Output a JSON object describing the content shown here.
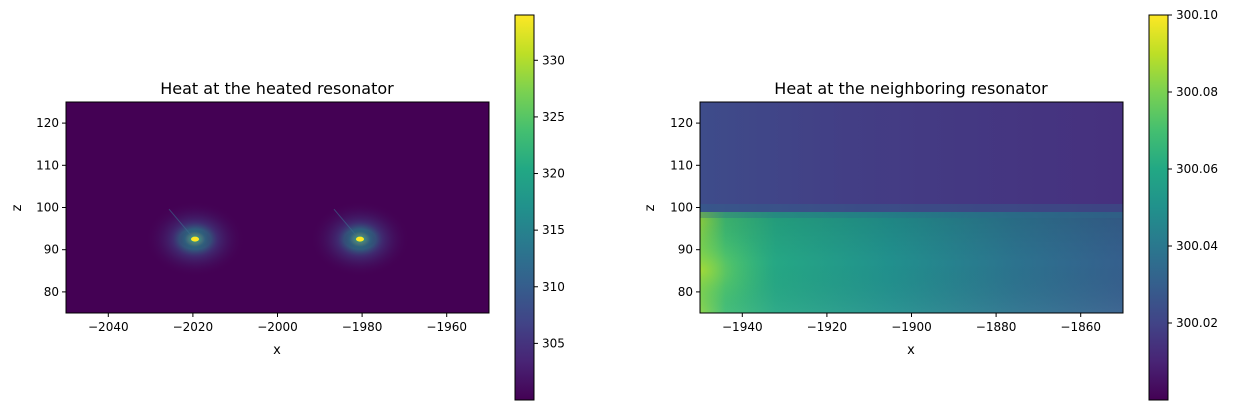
{
  "chart_data": [
    {
      "type": "heatmap",
      "title": "Heat at the heated resonator",
      "xlabel": "x",
      "ylabel": "z",
      "xlim": [
        -2050,
        -1950
      ],
      "ylim": [
        75,
        125
      ],
      "xticks": [
        -2040,
        -2020,
        -2000,
        -1980,
        -1960
      ],
      "xtick_labels": [
        "−2040",
        "−2020",
        "−2000",
        "−1980",
        "−1960"
      ],
      "yticks": [
        80,
        90,
        100,
        110,
        120
      ],
      "ytick_labels": [
        "80",
        "90",
        "100",
        "110",
        "120"
      ],
      "colormap": "viridis",
      "colorbar": {
        "range": [
          300.0,
          334.0
        ],
        "ticks": [
          305,
          310,
          315,
          320,
          325,
          330
        ],
        "tick_labels": [
          "305",
          "310",
          "315",
          "320",
          "325",
          "330"
        ]
      },
      "background_value": 300.0,
      "hotspots": [
        {
          "x": -2019.5,
          "z": 92.5,
          "peak": 334.0
        },
        {
          "x": -1980.5,
          "z": 92.5,
          "peak": 334.0
        }
      ]
    },
    {
      "type": "heatmap",
      "title": "Heat at the neighboring resonator",
      "xlabel": "x",
      "ylabel": "z",
      "xlim": [
        -1950,
        -1850
      ],
      "ylim": [
        75,
        125
      ],
      "xticks": [
        -1940,
        -1920,
        -1900,
        -1880,
        -1860
      ],
      "xtick_labels": [
        "−1940",
        "−1920",
        "−1900",
        "−1880",
        "−1860"
      ],
      "yticks": [
        80,
        90,
        100,
        110,
        120
      ],
      "ytick_labels": [
        "80",
        "90",
        "100",
        "110",
        "120"
      ],
      "colormap": "viridis",
      "colorbar": {
        "range": [
          300.0,
          300.1
        ],
        "ticks": [
          300.02,
          300.04,
          300.06,
          300.08,
          300.1
        ],
        "tick_labels": [
          "300.02",
          "300.04",
          "300.06",
          "300.08",
          "300.10"
        ]
      },
      "field_description": "warmest at lower-left (~300.085), cooling toward right and top; boundary near z=97",
      "sample_values": {
        "lower_left": 300.085,
        "lower_middle": 300.05,
        "lower_right": 300.035,
        "upper_left": 300.025,
        "upper_right": 300.013
      }
    }
  ]
}
